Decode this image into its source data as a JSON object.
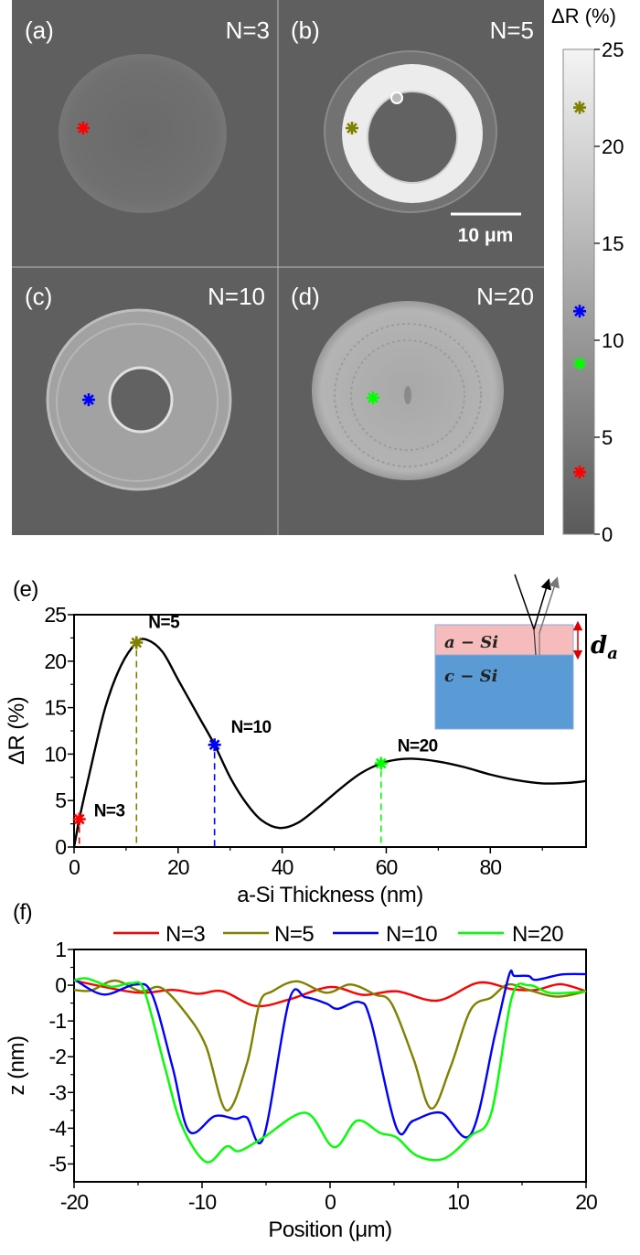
{
  "panels": [
    {
      "label": "(a)",
      "n_label": "N=3",
      "marker_color": "#ff0000"
    },
    {
      "label": "(b)",
      "n_label": "N=5",
      "marker_color": "#808000"
    },
    {
      "label": "(c)",
      "n_label": "N=10",
      "marker_color": "#0000ff"
    },
    {
      "label": "(d)",
      "n_label": "N=20",
      "marker_color": "#00ff00"
    }
  ],
  "scale_bar": "10 μm",
  "colorbar": {
    "title": "ΔR (%)",
    "range": [
      0,
      25
    ],
    "ticks": [
      "0",
      "5",
      "10",
      "15",
      "20",
      "25"
    ],
    "colormap": "grayscale",
    "markers": [
      {
        "color": "#808000",
        "value": 22
      },
      {
        "color": "#0000ff",
        "value": 11.5
      },
      {
        "color": "#00ff00",
        "value": 8.8
      },
      {
        "color": "#ff0000",
        "value": 3.2
      }
    ]
  },
  "chart_data": [
    {
      "panel_label": "(e)",
      "type": "line",
      "xlabel": "a-Si Thickness (nm)",
      "ylabel": "ΔR  (%)",
      "xlim": [
        0,
        98.4
      ],
      "ylim": [
        0,
        25
      ],
      "xticks": [
        "0",
        "20",
        "40",
        "60",
        "80"
      ],
      "yticks": [
        "0",
        "5",
        "10",
        "15",
        "20",
        "25"
      ],
      "grid": false,
      "curve": {
        "color": "#000000",
        "x": [
          0,
          0.5,
          1,
          3,
          6,
          9,
          12,
          14,
          17,
          20,
          24,
          27,
          30,
          33,
          36,
          39.5,
          43,
          47,
          51,
          55,
          59,
          62,
          65,
          70,
          75,
          80,
          85,
          90,
          95,
          98.4
        ],
        "y": [
          0,
          1.5,
          3,
          8,
          15,
          19.5,
          22,
          22.3,
          21,
          18,
          14,
          11,
          7.5,
          4.8,
          2.9,
          2.05,
          2.6,
          4.3,
          6.2,
          7.9,
          9,
          9.4,
          9.5,
          9.2,
          8.6,
          7.8,
          7.2,
          6.85,
          6.9,
          7.1
        ]
      },
      "markers": [
        {
          "label": "N=3",
          "x": 1,
          "y": 3,
          "color": "#ff0000"
        },
        {
          "label": "N=5",
          "x": 12,
          "y": 22,
          "color": "#808000"
        },
        {
          "label": "N=10",
          "x": 27,
          "y": 11,
          "color": "#0000ff"
        },
        {
          "label": "N=20",
          "x": 59,
          "y": 9,
          "color": "#00ff00"
        }
      ],
      "inset": {
        "layer_top": "a − Si",
        "layer_bottom": "c − Si",
        "thickness_symbol": "d",
        "thickness_subscript": "a",
        "top_color": "#f6bcbc",
        "bottom_color": "#5b9bd5"
      }
    },
    {
      "panel_label": "(f)",
      "type": "line",
      "xlabel": "Position (μm)",
      "ylabel": "z (nm)",
      "xlim": [
        -20,
        20
      ],
      "ylim": [
        -5.5,
        1
      ],
      "xticks": [
        "-20",
        "-10",
        "0",
        "10",
        "20"
      ],
      "yticks": [
        "1",
        "0",
        "-1",
        "-2",
        "-3",
        "-4",
        "-5"
      ],
      "grid": false,
      "legend_placement": "top",
      "series": [
        {
          "name": "N=3",
          "color": "#ff0000",
          "x": [
            -20,
            -15.2,
            -12.3,
            -10.3,
            -8.4,
            -5.8,
            -3.2,
            0,
            2.6,
            5.2,
            8.4,
            11.6,
            14.2,
            16.1,
            18,
            20
          ],
          "y": [
            0.13,
            -0.2,
            -0.13,
            -0.24,
            -0.17,
            -0.58,
            -0.4,
            -0.05,
            -0.27,
            -0.17,
            -0.43,
            0.07,
            -0.11,
            -0.13,
            0.03,
            -0.17
          ]
        },
        {
          "name": "N=5",
          "color": "#808000",
          "x": [
            -20,
            -18.7,
            -16.8,
            -14.8,
            -13.2,
            -11.3,
            -9.7,
            -8.1,
            -6.5,
            -5.5,
            -4.5,
            -2.6,
            -0.3,
            1.6,
            3.5,
            4.8,
            6.5,
            7.9,
            9.4,
            11,
            12.6,
            13.9,
            15.5,
            17.7,
            20
          ],
          "y": [
            -0.13,
            -0.15,
            0.13,
            -0.17,
            -0.07,
            -0.77,
            -1.7,
            -3.5,
            -2.2,
            -0.5,
            -0.17,
            0.11,
            -0.21,
            0.02,
            -0.26,
            -0.51,
            -2.04,
            -3.45,
            -2.3,
            -0.68,
            -0.34,
            0.02,
            -0.13,
            -0.32,
            -0.17
          ]
        },
        {
          "name": "N=10",
          "color": "#0000ff",
          "x": [
            -20,
            -17.7,
            -15.2,
            -13.9,
            -12.3,
            -11,
            -9,
            -7.4,
            -6.5,
            -5.2,
            -3.2,
            -1.9,
            -0.3,
            0.6,
            2.3,
            3.2,
            5.2,
            6.5,
            8.7,
            11,
            12.9,
            14,
            14.4,
            15.5,
            16.1,
            18.1,
            20
          ],
          "y": [
            0.17,
            -0.26,
            0.02,
            -0.26,
            -2.3,
            -4.09,
            -3.66,
            -3.74,
            -3.7,
            -4.26,
            -0.43,
            -0.34,
            -0.51,
            -0.66,
            -0.47,
            -1.02,
            -4.0,
            -3.79,
            -3.57,
            -4.17,
            -1.36,
            0.3,
            0.26,
            0.26,
            0.15,
            0.3,
            0.31
          ]
        },
        {
          "name": "N=20",
          "color": "#00ff00",
          "x": [
            -20,
            -19,
            -17.1,
            -15.5,
            -14.5,
            -12.9,
            -11.6,
            -9.7,
            -8.1,
            -7.1,
            -5.2,
            -1.9,
            0.3,
            2.1,
            3.9,
            5.2,
            6.8,
            8.9,
            11,
            12.6,
            14.2,
            15.5,
            17.1,
            18.7,
            20
          ],
          "y": [
            0.13,
            0.19,
            -0.04,
            0.06,
            -0.17,
            -2.3,
            -3.91,
            -4.94,
            -4.51,
            -4.64,
            -4.26,
            -3.57,
            -4.53,
            -3.79,
            -4.13,
            -4.26,
            -4.77,
            -4.85,
            -4.21,
            -3.57,
            -0.34,
            0,
            -0.21,
            -0.21,
            -0.17
          ]
        }
      ]
    }
  ]
}
